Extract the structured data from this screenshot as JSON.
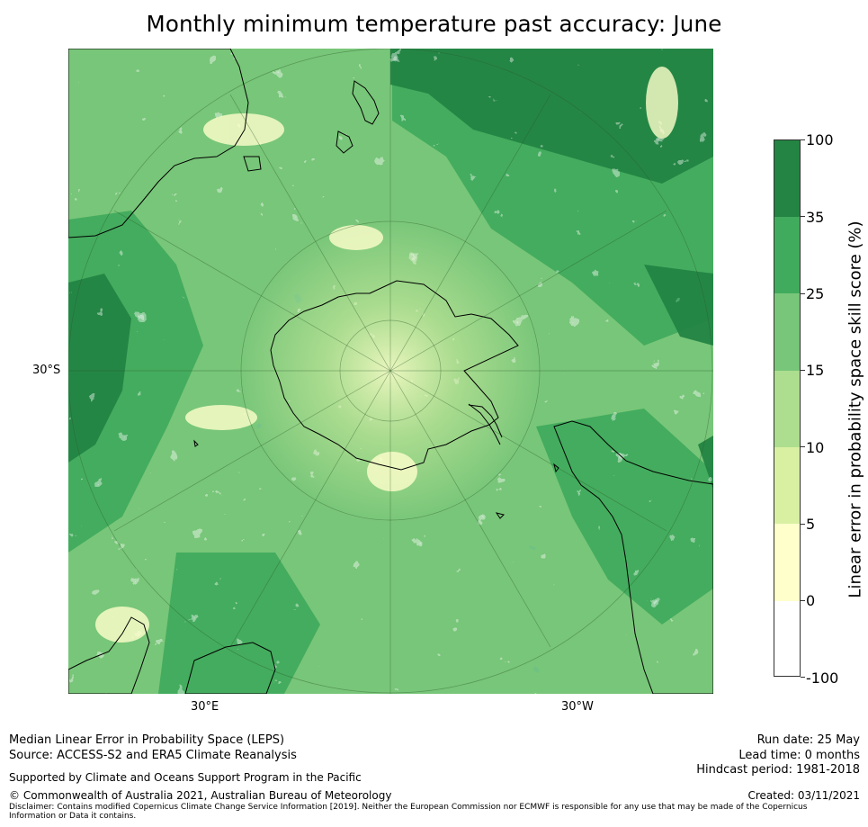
{
  "title": "Monthly minimum temperature past accuracy: June",
  "map": {
    "projection": "south-polar",
    "lat_labels": [
      "30°S"
    ],
    "lon_labels": [
      "30°E",
      "30°W"
    ],
    "land_outlines": [
      "Antarctica",
      "New Zealand",
      "Australia",
      "South America",
      "Africa",
      "Madagascar"
    ]
  },
  "colorbar": {
    "title": "Linear error in probability space skill score (%)",
    "tick_labels": [
      "100",
      "35",
      "25",
      "15",
      "10",
      "5",
      "0",
      "-100"
    ],
    "bins": [
      {
        "from": -100,
        "to": 0,
        "color": "#ffffff"
      },
      {
        "from": 0,
        "to": 5,
        "color": "#ffffcc"
      },
      {
        "from": 5,
        "to": 10,
        "color": "#d9f0a3"
      },
      {
        "from": 10,
        "to": 15,
        "color": "#addd8e"
      },
      {
        "from": 15,
        "to": 25,
        "color": "#78c679"
      },
      {
        "from": 25,
        "to": 35,
        "color": "#41ab5d"
      },
      {
        "from": 35,
        "to": 100,
        "color": "#238443"
      }
    ]
  },
  "footer": {
    "method": "Median Linear Error in Probability Space (LEPS)",
    "source": "Source: ACCESS-S2 and ERA5 Climate Reanalysis",
    "support": "Supported by Climate and Oceans Support Program in the Pacific",
    "copyright": "© Commonwealth of Australia 2021, Australian Bureau of Meteorology",
    "disclaimer": "Disclaimer: Contains modified Copernicus Climate Change Service Information [2019]. Neither the European Commission nor ECMWF is responsible for any use that may be made of the Copernicus Information or Data it contains.",
    "run_date": "Run date: 25 May",
    "lead_time": "Lead time: 0 months",
    "hindcast": "Hindcast period: 1981-2018",
    "created": "Created: 03/11/2021"
  }
}
